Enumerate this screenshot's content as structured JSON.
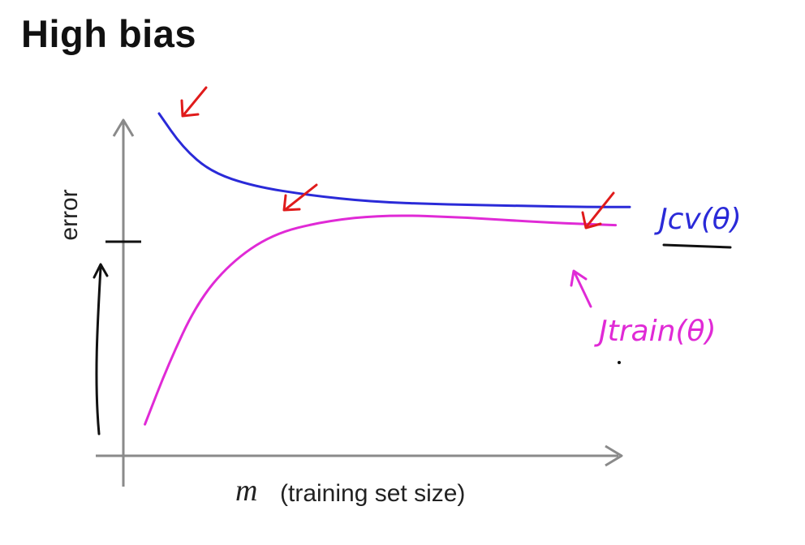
{
  "title": "High bias",
  "chart_data": {
    "type": "line",
    "xlabel_symbol": "m",
    "xlabel_text": "(training set size)",
    "ylabel": "error",
    "grid": false,
    "series": [
      {
        "name": "Jcv(θ)",
        "color": "#2a2ad8",
        "points": [
          [
            0.0,
            1.0
          ],
          [
            0.05,
            0.74
          ],
          [
            0.11,
            0.55
          ],
          [
            0.2,
            0.44
          ],
          [
            0.32,
            0.37
          ],
          [
            0.45,
            0.32
          ],
          [
            0.6,
            0.3
          ],
          [
            0.75,
            0.29
          ],
          [
            0.9,
            0.28
          ],
          [
            1.0,
            0.28
          ]
        ]
      },
      {
        "name": "Jtrain(θ)",
        "color": "#e02ad6",
        "points": [
          [
            -0.03,
            -0.9
          ],
          [
            0.02,
            -0.6
          ],
          [
            0.08,
            -0.3
          ],
          [
            0.15,
            -0.1
          ],
          [
            0.24,
            0.07
          ],
          [
            0.35,
            0.17
          ],
          [
            0.48,
            0.22
          ],
          [
            0.65,
            0.2
          ],
          [
            0.82,
            0.16
          ],
          [
            0.97,
            0.14
          ]
        ]
      }
    ],
    "annotations": {
      "level_tick": "desired performance level marked on error axis",
      "arrows": "red arrows pointing at Jcv curve at small, medium, large m"
    }
  }
}
